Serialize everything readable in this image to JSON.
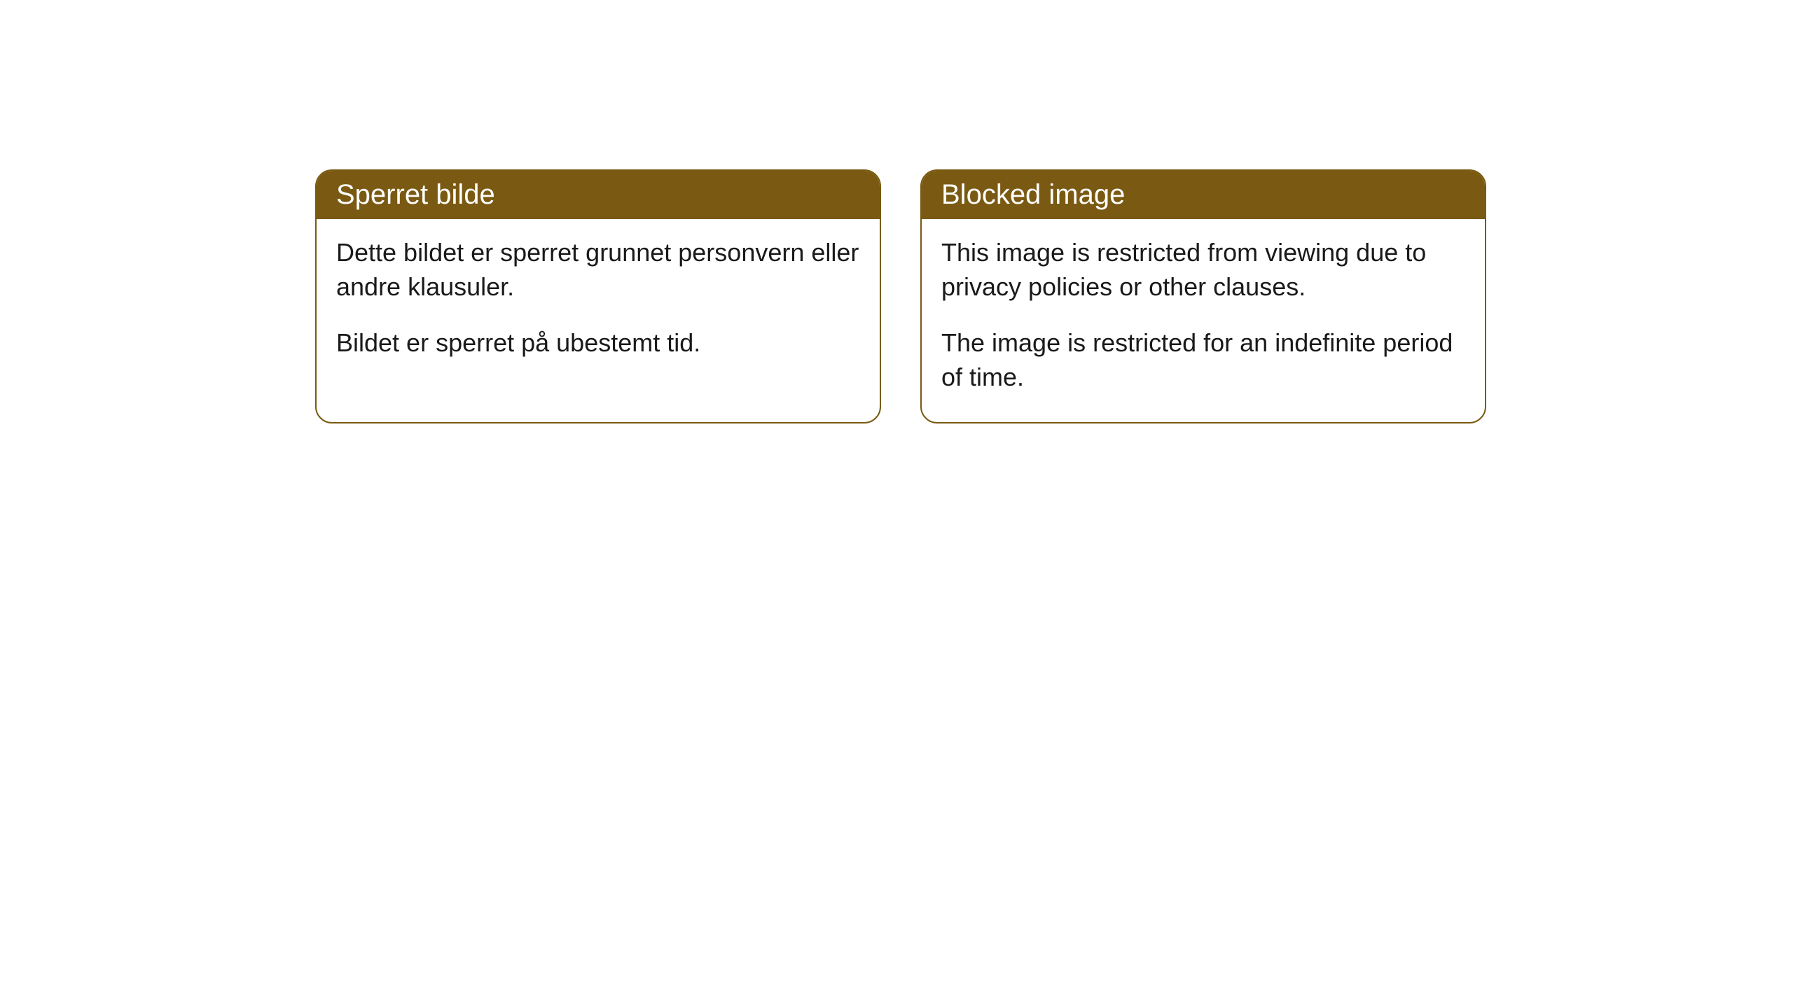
{
  "cards": [
    {
      "title": "Sperret bilde",
      "paragraph1": "Dette bildet er sperret grunnet personvern eller andre klausuler.",
      "paragraph2": "Bildet er sperret på ubestemt tid."
    },
    {
      "title": "Blocked image",
      "paragraph1": "This image is restricted from viewing due to privacy policies or other clauses.",
      "paragraph2": "The image is restricted for an indefinite period of time."
    }
  ],
  "style": {
    "header_background": "#7a5a12",
    "header_text_color": "#ffffff",
    "body_background": "#ffffff",
    "body_text_color": "#1a1a1a",
    "border_color": "#7a5a12",
    "border_radius": 24,
    "title_fontsize": 40,
    "body_fontsize": 36
  }
}
